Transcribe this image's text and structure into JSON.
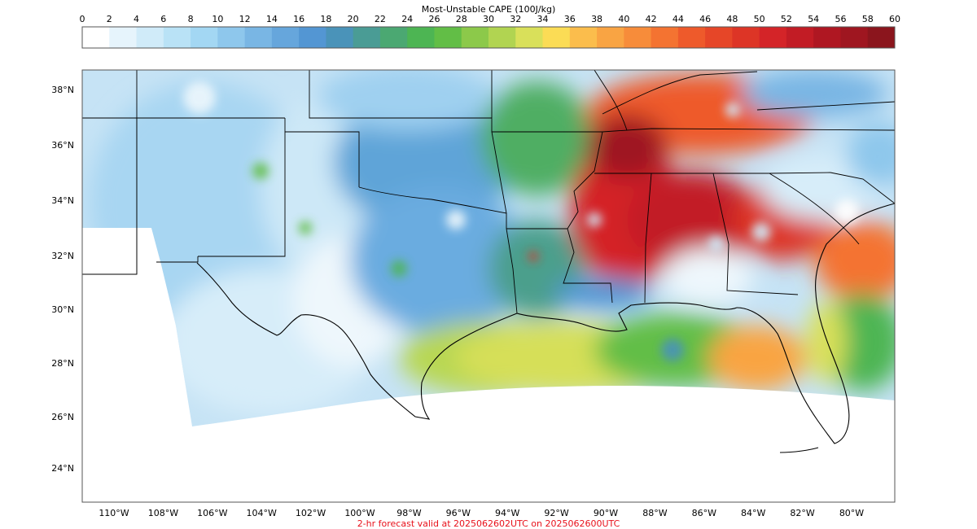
{
  "colorbar": {
    "title": "Most-Unstable CAPE (100J/kg)",
    "ticks": [
      "0",
      "2",
      "4",
      "6",
      "8",
      "10",
      "12",
      "14",
      "16",
      "18",
      "20",
      "22",
      "24",
      "26",
      "28",
      "30",
      "32",
      "34",
      "36",
      "38",
      "40",
      "42",
      "44",
      "46",
      "48",
      "50",
      "52",
      "54",
      "56",
      "58",
      "60"
    ],
    "colors": [
      "#ffffff",
      "#e6f4fc",
      "#d0ebf9",
      "#b9e2f6",
      "#a3d7f3",
      "#8ec7ec",
      "#79b6e4",
      "#66a6dc",
      "#5396d3",
      "#4a93b9",
      "#4a9c95",
      "#4ba872",
      "#4db553",
      "#62be46",
      "#8cc94a",
      "#b1d451",
      "#d9e05a",
      "#fbdc55",
      "#fbbd4c",
      "#f9a443",
      "#f78c3a",
      "#f47331",
      "#ee5a2b",
      "#e64628",
      "#dd3526",
      "#d42428",
      "#c21c25",
      "#af1722",
      "#9f1620",
      "#8b151d"
    ]
  },
  "map": {
    "lat_labels": [
      "38°N",
      "36°N",
      "34°N",
      "32°N",
      "30°N",
      "28°N",
      "26°N",
      "24°N"
    ],
    "lon_labels": [
      "110°W",
      "108°W",
      "106°W",
      "104°W",
      "102°W",
      "100°W",
      "98°W",
      "96°W",
      "94°W",
      "92°W",
      "90°W",
      "88°W",
      "86°W",
      "84°W",
      "82°W",
      "80°W"
    ]
  },
  "footer": "2-hr forecast valid at 2025062602UTC on 2025062600UTC"
}
